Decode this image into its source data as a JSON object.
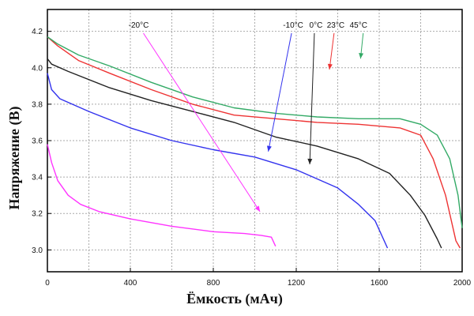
{
  "chart_data": {
    "type": "line",
    "xlabel": "Ёмкость (мАч)",
    "ylabel": "Напряжение (В)",
    "xlim": [
      0,
      2000
    ],
    "ylim": [
      2.88,
      4.32
    ],
    "x_ticks": [
      0,
      400,
      800,
      1200,
      1600,
      2000
    ],
    "y_ticks": [
      3.0,
      3.2,
      3.4,
      3.6,
      3.8,
      4.0,
      4.2
    ],
    "x_tick_labels": [
      "0",
      "400",
      "800",
      "1200",
      "1600",
      "2000"
    ],
    "y_tick_labels": [
      "3.0",
      "3.2",
      "3.4",
      "3.6",
      "3.8",
      "4.0",
      "4.2"
    ],
    "grid": true,
    "series": [
      {
        "name": "-20°C",
        "color": "#ff33ff",
        "points": [
          [
            0,
            3.58
          ],
          [
            20,
            3.48
          ],
          [
            50,
            3.38
          ],
          [
            100,
            3.3
          ],
          [
            160,
            3.25
          ],
          [
            250,
            3.21
          ],
          [
            400,
            3.17
          ],
          [
            600,
            3.13
          ],
          [
            800,
            3.1
          ],
          [
            950,
            3.09
          ],
          [
            1030,
            3.08
          ],
          [
            1080,
            3.07
          ],
          [
            1100,
            3.02
          ]
        ],
        "label_at": [
          440,
          80
        ],
        "arrow_to": [
          1025,
          3.21
        ]
      },
      {
        "name": "-10°C",
        "color": "#3333ee",
        "points": [
          [
            0,
            3.97
          ],
          [
            20,
            3.88
          ],
          [
            60,
            3.83
          ],
          [
            200,
            3.76
          ],
          [
            400,
            3.67
          ],
          [
            600,
            3.6
          ],
          [
            800,
            3.55
          ],
          [
            1000,
            3.51
          ],
          [
            1200,
            3.44
          ],
          [
            1400,
            3.34
          ],
          [
            1500,
            3.25
          ],
          [
            1580,
            3.16
          ],
          [
            1640,
            3.01
          ]
        ],
        "label_at": [
          1185,
          80
        ],
        "arrow_to": [
          1065,
          3.54
        ]
      },
      {
        "name": "0°C",
        "color": "#222222",
        "points": [
          [
            0,
            4.05
          ],
          [
            20,
            4.02
          ],
          [
            100,
            3.98
          ],
          [
            300,
            3.89
          ],
          [
            500,
            3.82
          ],
          [
            700,
            3.76
          ],
          [
            900,
            3.7
          ],
          [
            1100,
            3.62
          ],
          [
            1300,
            3.57
          ],
          [
            1500,
            3.5
          ],
          [
            1650,
            3.42
          ],
          [
            1750,
            3.3
          ],
          [
            1820,
            3.19
          ],
          [
            1880,
            3.06
          ],
          [
            1900,
            3.01
          ]
        ],
        "label_at": [
          1295,
          80
        ],
        "arrow_to": [
          1265,
          3.47
        ]
      },
      {
        "name": "23°C",
        "color": "#ee3333",
        "points": [
          [
            0,
            4.17
          ],
          [
            50,
            4.12
          ],
          [
            150,
            4.04
          ],
          [
            300,
            3.97
          ],
          [
            500,
            3.88
          ],
          [
            700,
            3.8
          ],
          [
            900,
            3.74
          ],
          [
            1100,
            3.72
          ],
          [
            1300,
            3.7
          ],
          [
            1500,
            3.69
          ],
          [
            1700,
            3.67
          ],
          [
            1800,
            3.63
          ],
          [
            1860,
            3.5
          ],
          [
            1920,
            3.3
          ],
          [
            1970,
            3.05
          ],
          [
            1990,
            3.01
          ]
        ],
        "label_at": [
          1390,
          80
        ],
        "arrow_to": [
          1360,
          3.99
        ]
      },
      {
        "name": "45°C",
        "color": "#33aa66",
        "points": [
          [
            0,
            4.17
          ],
          [
            50,
            4.13
          ],
          [
            150,
            4.07
          ],
          [
            300,
            4.01
          ],
          [
            500,
            3.92
          ],
          [
            700,
            3.84
          ],
          [
            900,
            3.78
          ],
          [
            1100,
            3.75
          ],
          [
            1300,
            3.73
          ],
          [
            1500,
            3.72
          ],
          [
            1700,
            3.72
          ],
          [
            1800,
            3.69
          ],
          [
            1880,
            3.63
          ],
          [
            1940,
            3.5
          ],
          [
            1980,
            3.3
          ],
          [
            2000,
            3.12
          ]
        ],
        "label_at": [
          1500,
          80
        ],
        "arrow_to": [
          1510,
          4.05
        ]
      }
    ]
  }
}
